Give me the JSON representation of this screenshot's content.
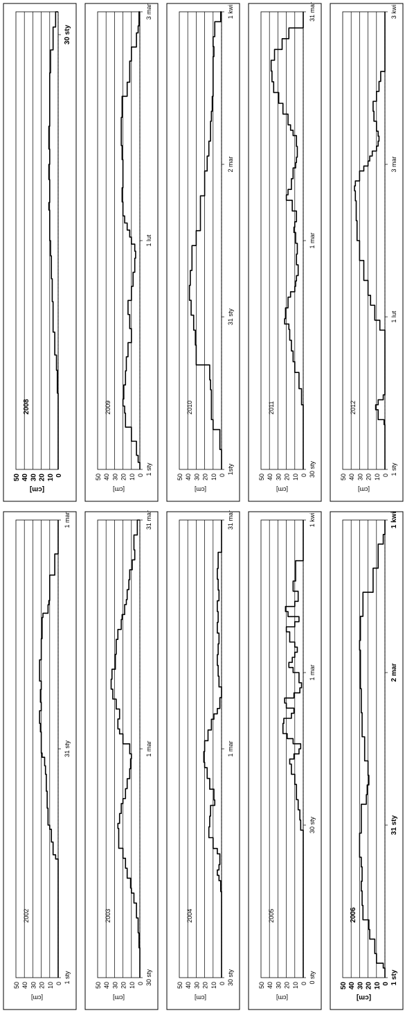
{
  "figure": {
    "ylabel": "[cm]",
    "yticks": [
      0,
      10,
      20,
      30,
      40,
      50
    ]
  },
  "chart_data": [
    {
      "type": "line",
      "title": "2002",
      "ylabel": "[cm]",
      "ylim": [
        0,
        50
      ],
      "bold": false,
      "xticks": [
        "1 sty",
        "31 sty",
        "1 mar"
      ],
      "x": [
        0,
        27,
        28,
        29,
        32,
        35,
        36,
        40,
        44,
        48,
        50,
        52,
        53,
        55,
        56,
        58,
        60,
        63,
        65,
        68,
        70,
        72,
        75,
        80,
        85,
        86,
        88,
        89,
        90,
        95,
        100,
        108
      ],
      "values": [
        0,
        0,
        3,
        6,
        8,
        10,
        12,
        13,
        14,
        15,
        16,
        19,
        20,
        20,
        20,
        21,
        22,
        20,
        21,
        20,
        22,
        22,
        20,
        19,
        18,
        12,
        11,
        10,
        10,
        4,
        0,
        0
      ]
    },
    {
      "type": "line",
      "title": "2003",
      "ylabel": "[cm]",
      "ylim": [
        0,
        50
      ],
      "bold": false,
      "xticks": [
        "30 sty",
        "1 mar",
        "31 mar"
      ],
      "x": [
        0,
        3,
        6,
        9,
        12,
        15,
        17,
        18,
        20,
        22,
        24,
        26,
        28,
        30,
        31,
        33,
        35,
        36,
        38,
        40,
        42,
        44,
        45,
        47,
        49,
        50,
        52,
        54,
        56,
        58,
        60,
        62,
        65,
        68,
        70,
        72,
        73,
        75,
        76,
        78,
        80,
        82,
        84,
        86,
        89,
        92
      ],
      "values": [
        0,
        0,
        1,
        2,
        4,
        7,
        10,
        11,
        15,
        17,
        20,
        25,
        25,
        26,
        24,
        22,
        20,
        17,
        15,
        12,
        11,
        10,
        12,
        20,
        24,
        26,
        24,
        28,
        32,
        34,
        33,
        29,
        28,
        26,
        22,
        21,
        18,
        16,
        15,
        13,
        12,
        9,
        6,
        7,
        3,
        0
      ]
    },
    {
      "type": "line",
      "title": "2004",
      "ylabel": "[cm]",
      "ylim": [
        0,
        50
      ],
      "bold": false,
      "xticks": [
        "30 sty",
        "1 mar",
        "31 mar"
      ],
      "x": [
        0,
        10,
        15,
        16,
        18,
        19,
        20,
        21,
        23,
        24,
        26,
        28,
        30,
        32,
        33,
        35,
        37,
        39,
        40,
        42,
        44,
        46,
        48,
        49,
        50,
        52,
        54,
        56,
        58,
        60,
        62,
        64,
        66,
        68,
        70,
        72,
        74,
        76,
        79,
        85
      ],
      "values": [
        0,
        0,
        0,
        1,
        3,
        5,
        3,
        2,
        5,
        10,
        15,
        14,
        13,
        8,
        9,
        14,
        17,
        20,
        21,
        20,
        16,
        12,
        9,
        5,
        2,
        0,
        3,
        4,
        5,
        4,
        3,
        5,
        4,
        5,
        3,
        4,
        5,
        4,
        0,
        0
      ]
    },
    {
      "type": "line",
      "title": "2005",
      "ylabel": "[cm]",
      "ylim": [
        0,
        50
      ],
      "bold": false,
      "xticks": [
        "0 sty",
        "30 sty",
        "1 mar",
        "1 kwi"
      ],
      "x": [
        0,
        20,
        28,
        29,
        31,
        33,
        35,
        38,
        40,
        42,
        43,
        44,
        45,
        46,
        47,
        48,
        50,
        51,
        52,
        53,
        54,
        55,
        56,
        57,
        58,
        60,
        61,
        62,
        63,
        64,
        65,
        66,
        68,
        69,
        70,
        71,
        72,
        73,
        74,
        76,
        78,
        82,
        90
      ],
      "values": [
        0,
        0,
        0,
        3,
        4,
        6,
        8,
        10,
        14,
        16,
        11,
        5,
        3,
        12,
        19,
        24,
        23,
        14,
        11,
        20,
        22,
        11,
        4,
        2,
        5,
        12,
        17,
        13,
        10,
        7,
        10,
        16,
        20,
        10,
        5,
        18,
        21,
        10,
        6,
        12,
        9,
        0,
        0
      ]
    },
    {
      "type": "line",
      "title": "2006",
      "ylabel": "[cm]",
      "ylim": [
        0,
        50
      ],
      "bold": true,
      "xticks": [
        "1 sty",
        "31 sty",
        "2 mar",
        "1 kwi"
      ],
      "x": [
        0,
        2,
        3,
        5,
        8,
        10,
        12,
        15,
        18,
        20,
        23,
        25,
        28,
        30,
        32,
        36,
        38,
        40,
        42,
        45,
        50,
        55,
        60,
        65,
        68,
        70,
        75,
        80,
        85,
        90,
        92,
        95
      ],
      "values": [
        0,
        2,
        10,
        12,
        18,
        19,
        26,
        27,
        28,
        27,
        28,
        30,
        30,
        28,
        28,
        22,
        21,
        19,
        20,
        24,
        27,
        28,
        29,
        29,
        30,
        29,
        26,
        14,
        8,
        2,
        0,
        0
      ]
    },
    {
      "type": "line",
      "title": "2008",
      "ylabel": "[cm]",
      "ylim": [
        0,
        50
      ],
      "bold": true,
      "xticks": [
        "30 sty"
      ],
      "x": [
        0,
        8,
        10,
        13,
        15,
        18,
        22,
        25,
        28,
        30,
        32,
        34,
        35,
        38,
        40,
        42,
        45,
        48,
        52,
        55,
        58,
        60
      ],
      "values": [
        0,
        0,
        1,
        2,
        4,
        6,
        7,
        8,
        9,
        10,
        10,
        11,
        10,
        11,
        10,
        11,
        10,
        10,
        9,
        6,
        3,
        0
      ]
    },
    {
      "type": "line",
      "title": "2009",
      "ylabel": "[cm]",
      "ylim": [
        0,
        50
      ],
      "bold": false,
      "xticks": [
        "1 sty",
        "1 lut",
        "3 mar"
      ],
      "x": [
        0,
        1,
        2,
        4,
        6,
        8,
        9,
        10,
        12,
        14,
        16,
        18,
        20,
        22,
        24,
        26,
        28,
        30,
        31,
        32,
        33,
        34,
        35,
        36,
        38,
        40,
        42,
        44,
        46,
        48,
        50,
        53,
        55,
        58,
        60,
        62,
        63,
        65
      ],
      "values": [
        0,
        2,
        4,
        10,
        17,
        18,
        20,
        19,
        17,
        16,
        14,
        10,
        12,
        14,
        10,
        8,
        6,
        5,
        6,
        10,
        12,
        15,
        18,
        20,
        21,
        20,
        20,
        21,
        22,
        22,
        21,
        15,
        12,
        10,
        4,
        2,
        1,
        0
      ]
    },
    {
      "type": "line",
      "title": "2010",
      "ylabel": "[cm]",
      "ylim": [
        0,
        50
      ],
      "bold": false,
      "xticks": [
        "1sty",
        "31 sty",
        "2 mar",
        "1 kwi"
      ],
      "x": [
        0,
        2,
        4,
        8,
        10,
        14,
        16,
        18,
        21,
        25,
        28,
        31,
        34,
        37,
        40,
        45,
        48,
        55,
        60,
        63,
        66,
        70,
        72,
        75,
        80,
        83,
        85,
        87,
        90,
        92
      ],
      "values": [
        0,
        0,
        2,
        10,
        12,
        12,
        13,
        14,
        30,
        31,
        33,
        36,
        38,
        37,
        35,
        30,
        25,
        20,
        17,
        15,
        13,
        12,
        11,
        10,
        10,
        9,
        10,
        8,
        1,
        0
      ]
    },
    {
      "type": "line",
      "title": "2011",
      "ylabel": "[cm]",
      "ylim": [
        0,
        50
      ],
      "bold": false,
      "xticks": [
        "30 sty",
        "1 mar",
        "31 mar"
      ],
      "x": [
        0,
        5,
        8,
        12,
        15,
        18,
        20,
        22,
        24,
        26,
        27,
        28,
        30,
        32,
        33,
        34,
        35,
        36,
        38,
        40,
        42,
        44,
        45,
        46,
        48,
        50,
        51,
        52,
        54,
        56,
        57,
        58,
        60,
        62,
        63,
        64,
        66,
        68,
        70,
        72,
        74,
        76,
        78,
        80,
        82,
        85
      ],
      "values": [
        0,
        0,
        0,
        2,
        5,
        10,
        12,
        14,
        16,
        17,
        22,
        21,
        18,
        15,
        10,
        9,
        8,
        6,
        8,
        7,
        9,
        11,
        10,
        8,
        13,
        20,
        18,
        14,
        12,
        9,
        8,
        7,
        8,
        12,
        15,
        18,
        24,
        29,
        35,
        37,
        38,
        34,
        25,
        17,
        0,
        0
      ]
    },
    {
      "type": "line",
      "title": "2012",
      "ylabel": "[cm]",
      "ylim": [
        0,
        50
      ],
      "bold": false,
      "xticks": [
        "1 sty",
        "1 lut",
        "3 mar",
        "3 kwi"
      ],
      "x": [
        0,
        8,
        9,
        10,
        12,
        13,
        14,
        15,
        18,
        22,
        26,
        28,
        30,
        33,
        35,
        38,
        42,
        46,
        50,
        54,
        56,
        57,
        58,
        60,
        61,
        62,
        63,
        64,
        65,
        66,
        67,
        68,
        70,
        72,
        74,
        76,
        78,
        80,
        92
      ],
      "values": [
        0,
        0,
        1,
        8,
        11,
        8,
        2,
        0,
        0,
        0,
        0,
        6,
        12,
        17,
        20,
        25,
        30,
        33,
        34,
        35,
        36,
        35,
        30,
        25,
        20,
        18,
        15,
        10,
        8,
        7,
        8,
        10,
        13,
        14,
        10,
        7,
        5,
        0,
        0
      ]
    }
  ]
}
